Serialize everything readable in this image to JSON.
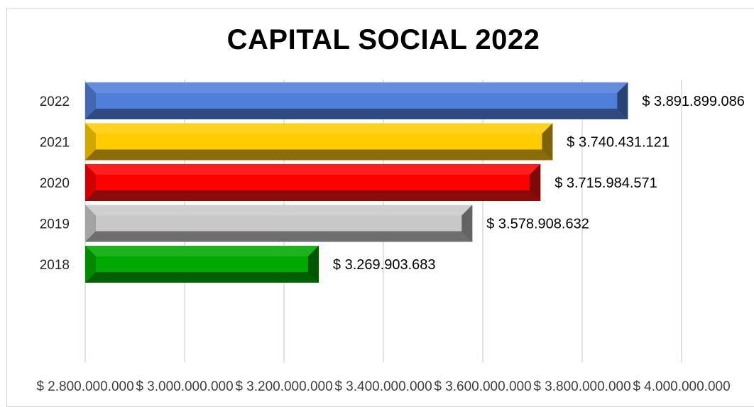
{
  "chart_data": {
    "type": "bar",
    "orientation": "horizontal",
    "title": "CAPITAL SOCIAL 2022",
    "categories": [
      "2022",
      "2021",
      "2020",
      "2019",
      "2018"
    ],
    "values": [
      3891899086,
      3740431121,
      3715984571,
      3578908632,
      3269903683
    ],
    "value_labels": [
      "$ 3.891.899.086",
      "$ 3.740.431.121",
      "$ 3.715.984.571",
      "$ 3.578.908.632",
      "$ 3.269.903.683"
    ],
    "colors": [
      "#4f7fd8",
      "#ffcc00",
      "#ff0000",
      "#c8c8c8",
      "#00a800"
    ],
    "dark_colors": [
      "#2e4a80",
      "#8a6d0a",
      "#8b0a0a",
      "#6e6e6e",
      "#006000"
    ],
    "xlim": [
      2800000000,
      4000000000
    ],
    "x_ticks": [
      2800000000,
      3000000000,
      3200000000,
      3400000000,
      3600000000,
      3800000000,
      4000000000
    ],
    "x_tick_labels": [
      "$ 2.800.000.000",
      "$ 3.000.000.000",
      "$ 3.200.000.000",
      "$ 3.400.000.000",
      "$ 3.600.000.000",
      "$ 3.800.000.000",
      "$ 4.000.000.000"
    ],
    "grid": true,
    "legend": "none",
    "bar_style": "3d-bevel"
  }
}
